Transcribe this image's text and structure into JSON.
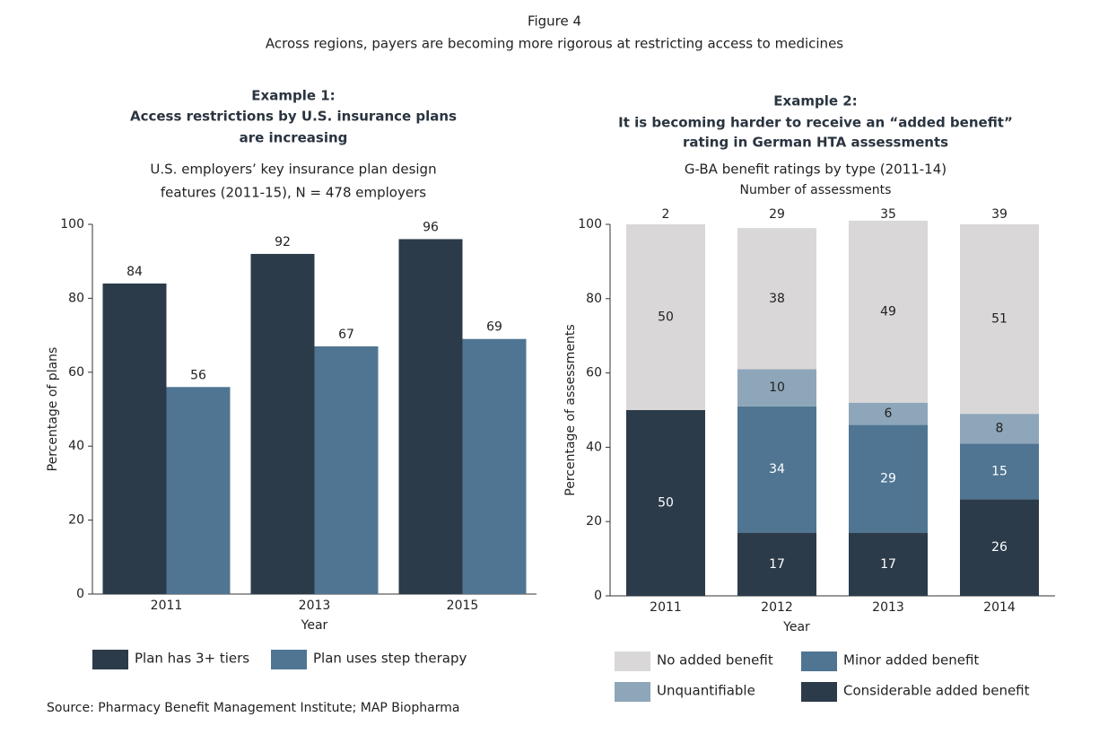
{
  "figure_title": "Figure 4",
  "figure_subtitle": "Across regions, payers are becoming more rigorous at restricting access to medicines",
  "source": "Source: Pharmacy Benefit Management Institute; MAP Biopharma",
  "chart_data": [
    {
      "type": "bar",
      "title": [
        "Example 1:",
        "Access restrictions by U.S. insurance plans",
        "are increasing"
      ],
      "subtitle": [
        "U.S. employers’ key insurance plan design",
        "features (2011-15), N = 478 employers"
      ],
      "x_label": "Year",
      "y_label": "Percentage of plans",
      "categories": [
        "2011",
        "2013",
        "2015"
      ],
      "series": [
        {
          "name": "Plan has 3+ tiers",
          "color": "#2b3b4a",
          "values": [
            84,
            92,
            96
          ]
        },
        {
          "name": "Plan uses step therapy",
          "color": "#4f7592",
          "values": [
            56,
            67,
            69
          ]
        }
      ],
      "ylim": [
        0,
        100
      ],
      "yticks": [
        0,
        20,
        40,
        60,
        80,
        100
      ],
      "grid": false
    },
    {
      "type": "stacked_bar",
      "title": [
        "Example 2:",
        "It is becoming harder to receive an “added benefit”",
        "rating in German HTA assessments"
      ],
      "subtitle": [
        "G-BA benefit ratings by type (2011-14)"
      ],
      "note": "Number of assessments",
      "x_label": "Year",
      "y_label": "Percentage of assessments",
      "categories": [
        "2011",
        "2012",
        "2013",
        "2014"
      ],
      "assessment_counts": [
        2,
        29,
        35,
        39
      ],
      "series": [
        {
          "name": "Considerable added benefit",
          "color": "#2b3b4a",
          "values": [
            50,
            17,
            17,
            26
          ]
        },
        {
          "name": "Minor added benefit",
          "color": "#4f7592",
          "values": [
            null,
            34,
            29,
            15
          ]
        },
        {
          "name": "Unquantifiable",
          "color": "#8ea6b9",
          "values": [
            null,
            10,
            6,
            8
          ]
        },
        {
          "name": "No added benefit",
          "color": "#d9d7d7",
          "values": [
            50,
            38,
            49,
            51
          ]
        }
      ],
      "ylim": [
        0,
        100
      ],
      "yticks": [
        0,
        20,
        40,
        60,
        80,
        100
      ],
      "grid": false
    }
  ]
}
